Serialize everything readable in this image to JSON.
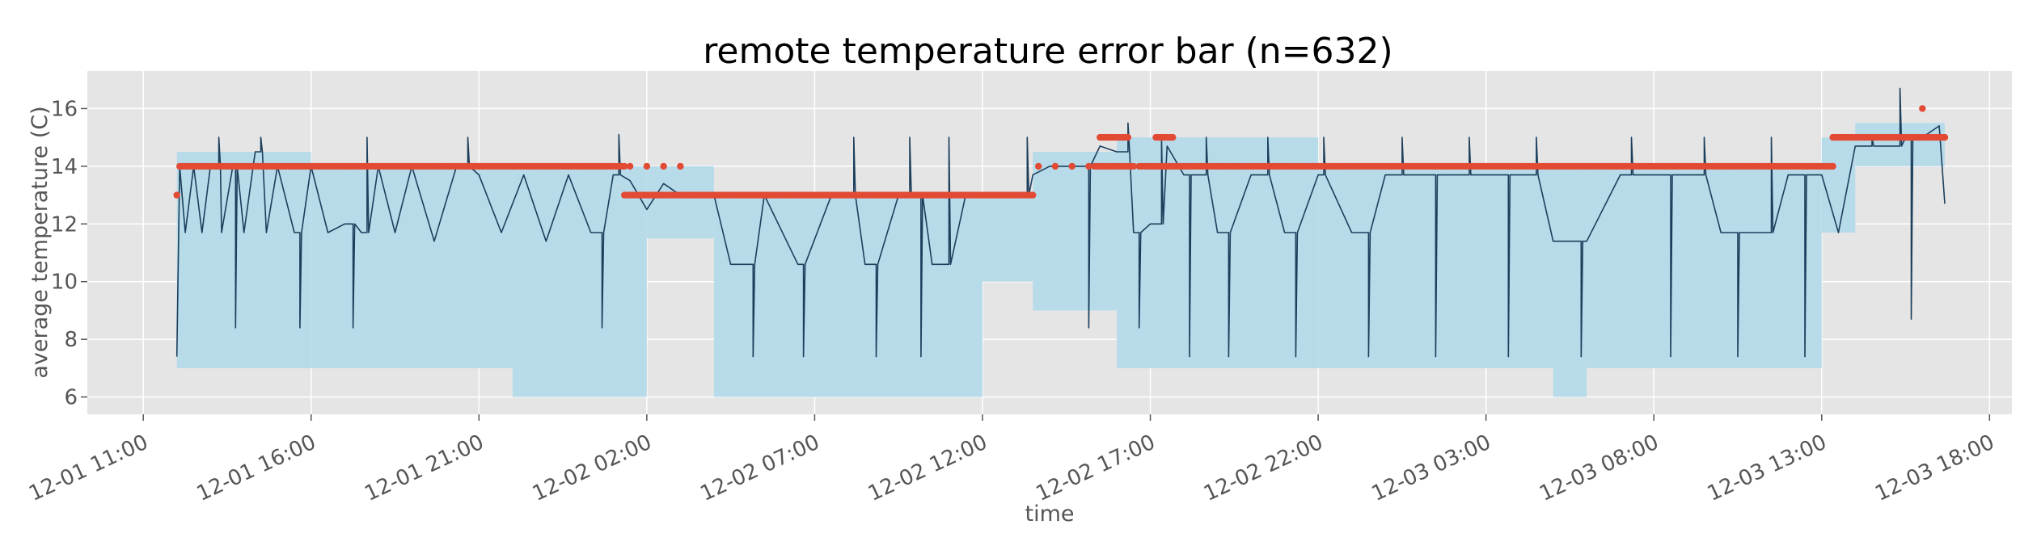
{
  "chart_data": {
    "type": "line",
    "title": "remote temperature error bar (n=632)",
    "xlabel": "time",
    "ylabel": "average temperature (C)",
    "x_range": [
      "2023-12-01 09:20",
      "2023-12-03 18:40"
    ],
    "ylim": [
      5.4,
      17.3
    ],
    "grid": true,
    "legend": "none",
    "x_ticks": [
      {
        "time": "2023-12-01 11:00",
        "label": "12-01 11:00"
      },
      {
        "time": "2023-12-01 16:00",
        "label": "12-01 16:00"
      },
      {
        "time": "2023-12-01 21:00",
        "label": "12-01 21:00"
      },
      {
        "time": "2023-12-02 02:00",
        "label": "12-02 02:00"
      },
      {
        "time": "2023-12-02 07:00",
        "label": "12-02 07:00"
      },
      {
        "time": "2023-12-02 12:00",
        "label": "12-02 12:00"
      },
      {
        "time": "2023-12-02 17:00",
        "label": "12-02 17:00"
      },
      {
        "time": "2023-12-02 22:00",
        "label": "12-02 22:00"
      },
      {
        "time": "2023-12-03 03:00",
        "label": "12-03 03:00"
      },
      {
        "time": "2023-12-03 08:00",
        "label": "12-03 08:00"
      },
      {
        "time": "2023-12-03 13:00",
        "label": "12-03 13:00"
      },
      {
        "time": "2023-12-03 18:00",
        "label": "12-03 18:00"
      }
    ],
    "y_ticks": [
      6,
      8,
      10,
      12,
      14,
      16
    ],
    "series": [
      {
        "kind": "mean-line",
        "points": [
          [
            "2023-12-01 12:00",
            7.4
          ],
          [
            "2023-12-01 12:05",
            14.0
          ],
          [
            "2023-12-01 12:15",
            11.7
          ],
          [
            "2023-12-01 12:30",
            14.0
          ],
          [
            "2023-12-01 12:45",
            11.7
          ],
          [
            "2023-12-01 13:00",
            14.0
          ],
          [
            "2023-12-01 13:20",
            11.7
          ],
          [
            "2023-12-01 13:40",
            14.0
          ],
          [
            "2023-12-01 14:00",
            11.7
          ],
          [
            "2023-12-01 14:20",
            14.5
          ],
          [
            "2023-12-01 14:40",
            11.7
          ],
          [
            "2023-12-01 15:00",
            14.0
          ],
          [
            "2023-12-01 15:30",
            11.7
          ],
          [
            "2023-12-01 16:00",
            14.0
          ],
          [
            "2023-12-01 16:30",
            11.7
          ],
          [
            "2023-12-01 17:00",
            12.0
          ],
          [
            "2023-12-01 17:30",
            11.7
          ],
          [
            "2023-12-01 18:00",
            14.0
          ],
          [
            "2023-12-01 18:30",
            11.7
          ],
          [
            "2023-12-01 19:00",
            14.0
          ],
          [
            "2023-12-01 19:40",
            11.4
          ],
          [
            "2023-12-01 20:20",
            14.0
          ],
          [
            "2023-12-01 21:00",
            13.7
          ],
          [
            "2023-12-01 21:40",
            11.7
          ],
          [
            "2023-12-01 22:20",
            13.7
          ],
          [
            "2023-12-01 23:00",
            11.4
          ],
          [
            "2023-12-01 23:40",
            13.7
          ],
          [
            "2023-12-02 00:20",
            11.7
          ],
          [
            "2023-12-02 01:00",
            13.7
          ],
          [
            "2023-12-02 01:30",
            13.5
          ],
          [
            "2023-12-02 02:00",
            12.5
          ],
          [
            "2023-12-02 02:30",
            13.4
          ],
          [
            "2023-12-02 03:00",
            13.0
          ],
          [
            "2023-12-02 04:00",
            13.0
          ],
          [
            "2023-12-02 04:30",
            10.6
          ],
          [
            "2023-12-02 05:30",
            13.0
          ],
          [
            "2023-12-02 06:30",
            10.6
          ],
          [
            "2023-12-02 07:30",
            13.0
          ],
          [
            "2023-12-02 08:30",
            10.6
          ],
          [
            "2023-12-02 09:30",
            13.0
          ],
          [
            "2023-12-02 10:30",
            10.6
          ],
          [
            "2023-12-02 11:30",
            13.0
          ],
          [
            "2023-12-02 12:30",
            13.0
          ],
          [
            "2023-12-02 13:00",
            13.0
          ],
          [
            "2023-12-02 13:30",
            13.7
          ],
          [
            "2023-12-02 14:00",
            14.0
          ],
          [
            "2023-12-02 15:00",
            14.0
          ],
          [
            "2023-12-02 15:30",
            14.7
          ],
          [
            "2023-12-02 16:00",
            14.5
          ],
          [
            "2023-12-02 16:30",
            11.7
          ],
          [
            "2023-12-02 17:00",
            12.0
          ],
          [
            "2023-12-02 17:30",
            14.7
          ],
          [
            "2023-12-02 18:00",
            13.7
          ],
          [
            "2023-12-02 19:00",
            11.7
          ],
          [
            "2023-12-02 20:00",
            13.7
          ],
          [
            "2023-12-02 21:00",
            11.7
          ],
          [
            "2023-12-02 22:00",
            13.7
          ],
          [
            "2023-12-02 23:00",
            11.7
          ],
          [
            "2023-12-03 00:00",
            13.7
          ],
          [
            "2023-12-03 01:00",
            13.7
          ],
          [
            "2023-12-03 02:00",
            13.7
          ],
          [
            "2023-12-03 03:00",
            13.7
          ],
          [
            "2023-12-03 04:00",
            13.7
          ],
          [
            "2023-12-03 05:00",
            11.4
          ],
          [
            "2023-12-03 06:00",
            11.4
          ],
          [
            "2023-12-03 07:00",
            13.7
          ],
          [
            "2023-12-03 08:00",
            13.7
          ],
          [
            "2023-12-03 09:00",
            13.7
          ],
          [
            "2023-12-03 10:00",
            11.7
          ],
          [
            "2023-12-03 11:00",
            11.7
          ],
          [
            "2023-12-03 12:00",
            13.7
          ],
          [
            "2023-12-03 13:00",
            13.7
          ],
          [
            "2023-12-03 13:30",
            11.7
          ],
          [
            "2023-12-03 14:00",
            14.7
          ],
          [
            "2023-12-03 15:00",
            14.7
          ],
          [
            "2023-12-03 15:30",
            15.0
          ],
          [
            "2023-12-03 16:00",
            15.0
          ],
          [
            "2023-12-03 16:30",
            15.4
          ],
          [
            "2023-12-03 16:40",
            12.7
          ]
        ],
        "spikes": [
          [
            "2023-12-01 13:15",
            15.0
          ],
          [
            "2023-12-01 13:45",
            8.4
          ],
          [
            "2023-12-01 14:30",
            15.0
          ],
          [
            "2023-12-01 15:40",
            8.4
          ],
          [
            "2023-12-01 17:15",
            8.4
          ],
          [
            "2023-12-01 17:40",
            15.0
          ],
          [
            "2023-12-01 20:40",
            15.0
          ],
          [
            "2023-12-02 00:40",
            8.4
          ],
          [
            "2023-12-02 01:10",
            15.1
          ],
          [
            "2023-12-02 05:10",
            7.4
          ],
          [
            "2023-12-02 06:40",
            7.4
          ],
          [
            "2023-12-02 08:10",
            15.0
          ],
          [
            "2023-12-02 08:50",
            7.4
          ],
          [
            "2023-12-02 09:50",
            15.0
          ],
          [
            "2023-12-02 10:10",
            7.4
          ],
          [
            "2023-12-02 11:00",
            15.0
          ],
          [
            "2023-12-02 13:20",
            15.0
          ],
          [
            "2023-12-02 15:10",
            8.4
          ],
          [
            "2023-12-02 16:20",
            15.5
          ],
          [
            "2023-12-02 16:40",
            8.4
          ],
          [
            "2023-12-02 17:20",
            15.0
          ],
          [
            "2023-12-02 18:10",
            7.4
          ],
          [
            "2023-12-02 18:40",
            15.0
          ],
          [
            "2023-12-02 19:20",
            7.4
          ],
          [
            "2023-12-02 20:30",
            15.0
          ],
          [
            "2023-12-02 21:20",
            7.4
          ],
          [
            "2023-12-02 22:10",
            15.0
          ],
          [
            "2023-12-02 23:30",
            7.4
          ],
          [
            "2023-12-03 00:30",
            15.0
          ],
          [
            "2023-12-03 01:30",
            7.4
          ],
          [
            "2023-12-03 02:30",
            15.0
          ],
          [
            "2023-12-03 03:40",
            7.4
          ],
          [
            "2023-12-03 04:30",
            15.0
          ],
          [
            "2023-12-03 05:50",
            7.4
          ],
          [
            "2023-12-03 07:20",
            15.0
          ],
          [
            "2023-12-03 08:30",
            7.4
          ],
          [
            "2023-12-03 09:30",
            15.0
          ],
          [
            "2023-12-03 10:30",
            7.4
          ],
          [
            "2023-12-03 11:30",
            15.0
          ],
          [
            "2023-12-03 12:30",
            7.4
          ],
          [
            "2023-12-03 14:30",
            15.0
          ],
          [
            "2023-12-03 15:20",
            16.7
          ],
          [
            "2023-12-03 15:40",
            8.7
          ]
        ]
      },
      {
        "kind": "error-band",
        "segments": [
          {
            "from": "2023-12-01 12:00",
            "to": "2023-12-01 16:00",
            "low": 7.0,
            "high": 14.5
          },
          {
            "from": "2023-12-01 16:00",
            "to": "2023-12-01 22:00",
            "low": 7.0,
            "high": 14.0
          },
          {
            "from": "2023-12-01 22:00",
            "to": "2023-12-02 02:00",
            "low": 6.0,
            "high": 14.0
          },
          {
            "from": "2023-12-02 02:00",
            "to": "2023-12-02 04:00",
            "low": 11.5,
            "high": 14.0
          },
          {
            "from": "2023-12-02 04:00",
            "to": "2023-12-02 12:00",
            "low": 6.0,
            "high": 13.0
          },
          {
            "from": "2023-12-02 12:00",
            "to": "2023-12-02 13:30",
            "low": 10.0,
            "high": 13.0
          },
          {
            "from": "2023-12-02 13:30",
            "to": "2023-12-02 16:00",
            "low": 9.0,
            "high": 14.5
          },
          {
            "from": "2023-12-02 16:00",
            "to": "2023-12-02 17:00",
            "low": 7.0,
            "high": 15.0
          },
          {
            "from": "2023-12-02 17:00",
            "to": "2023-12-02 22:00",
            "low": 7.0,
            "high": 15.0
          },
          {
            "from": "2023-12-02 22:00",
            "to": "2023-12-03 05:00",
            "low": 7.0,
            "high": 14.0
          },
          {
            "from": "2023-12-03 05:00",
            "to": "2023-12-03 06:00",
            "low": 6.0,
            "high": 14.0
          },
          {
            "from": "2023-12-03 06:00",
            "to": "2023-12-03 08:30",
            "low": 7.0,
            "high": 14.0
          },
          {
            "from": "2023-12-03 08:30",
            "to": "2023-12-03 13:00",
            "low": 7.0,
            "high": 14.0
          },
          {
            "from": "2023-12-03 13:00",
            "to": "2023-12-03 14:00",
            "low": 11.7,
            "high": 15.0
          },
          {
            "from": "2023-12-03 14:00",
            "to": "2023-12-03 16:40",
            "low": 14.0,
            "high": 15.5
          }
        ]
      },
      {
        "kind": "remote-scatter",
        "runs": [
          {
            "from": "2023-12-01 12:00",
            "to": "2023-12-01 12:00",
            "value": 13
          },
          {
            "from": "2023-12-01 12:05",
            "to": "2023-12-02 01:20",
            "value": 14
          },
          {
            "from": "2023-12-02 01:30",
            "to": "2023-12-02 03:10",
            "value": 14,
            "sparse": true
          },
          {
            "from": "2023-12-02 01:20",
            "to": "2023-12-02 13:30",
            "value": 13
          },
          {
            "from": "2023-12-02 13:40",
            "to": "2023-12-02 15:20",
            "value": 14,
            "sparse": true
          },
          {
            "from": "2023-12-02 15:20",
            "to": "2023-12-02 16:30",
            "value": 14
          },
          {
            "from": "2023-12-02 15:30",
            "to": "2023-12-02 16:20",
            "value": 15
          },
          {
            "from": "2023-12-02 17:10",
            "to": "2023-12-02 17:40",
            "value": 15
          },
          {
            "from": "2023-12-02 16:40",
            "to": "2023-12-03 13:20",
            "value": 14
          },
          {
            "from": "2023-12-03 13:20",
            "to": "2023-12-03 16:40",
            "value": 15
          },
          {
            "from": "2023-12-03 16:00",
            "to": "2023-12-03 16:00",
            "value": 16
          }
        ]
      }
    ]
  },
  "colors": {
    "plot_background": "#e5e5e5",
    "grid": "#ffffff",
    "band": "#b8dbea",
    "line": "#1c3f5c",
    "scatter": "#e24a33",
    "text": "#555555"
  }
}
